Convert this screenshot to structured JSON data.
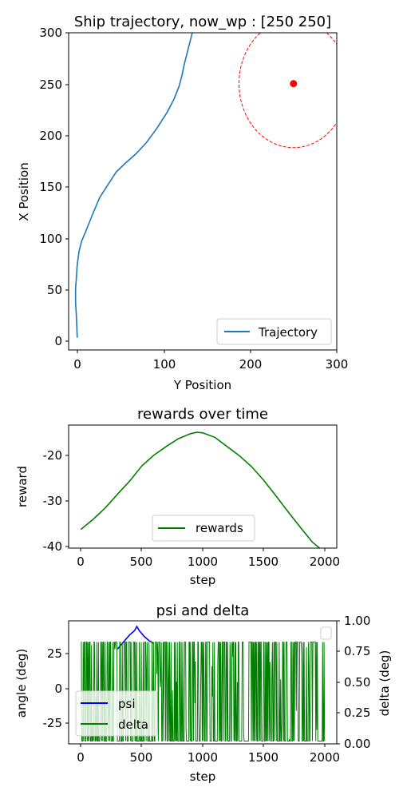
{
  "chart_data": [
    {
      "type": "line",
      "title": "Ship trajectory, now_wp : [250 250]",
      "xlabel": "Y Position",
      "ylabel": "X Position",
      "xlim": [
        -10,
        300
      ],
      "ylim": [
        -12,
        300
      ],
      "xticks": [
        0,
        100,
        200,
        300
      ],
      "yticks": [
        0,
        50,
        100,
        150,
        200,
        250,
        300
      ],
      "legend": {
        "position": "lower-right",
        "entries": [
          "Trajectory"
        ]
      },
      "series": [
        {
          "name": "Trajectory",
          "color": "#1f77b4",
          "x": [
            0,
            -1,
            -2,
            -2,
            -1,
            0,
            2,
            5,
            10,
            18,
            26,
            35,
            45,
            56,
            68,
            80,
            92,
            104,
            112,
            118,
            121,
            124,
            127,
            130,
            133,
            135
          ],
          "y": [
            0,
            20,
            35,
            48,
            60,
            72,
            85,
            95,
            105,
            122,
            138,
            150,
            163,
            172,
            181,
            192,
            206,
            222,
            235,
            248,
            258,
            270,
            280,
            290,
            300,
            308
          ]
        }
      ],
      "waypoint": {
        "y": 250,
        "x": 250,
        "color": "#ff0000"
      },
      "waypoint_circle": {
        "cy": 250,
        "cx": 250,
        "r": 63,
        "color": "#ff0000",
        "style": "dashed"
      }
    },
    {
      "type": "line",
      "title": "rewards over time",
      "xlabel": "step",
      "ylabel": "reward",
      "xlim": [
        -100,
        2100
      ],
      "ylim": [
        -40.3,
        -13.3
      ],
      "xticks": [
        0,
        500,
        1000,
        1500,
        2000
      ],
      "yticks": [
        -40,
        -30,
        -20
      ],
      "legend": {
        "position": "bottom-center",
        "entries": [
          "rewards"
        ]
      },
      "series": [
        {
          "name": "rewards",
          "color": "#008000",
          "x": [
            0,
            100,
            200,
            300,
            400,
            500,
            600,
            700,
            800,
            900,
            950,
            1000,
            1100,
            1200,
            1300,
            1400,
            1500,
            1600,
            1700,
            1800,
            1900,
            2000
          ],
          "y": [
            -36.2,
            -34.0,
            -31.5,
            -28.5,
            -25.6,
            -22.3,
            -19.9,
            -18.0,
            -16.3,
            -15.2,
            -14.9,
            -15.0,
            -16.0,
            -18.0,
            -20.0,
            -22.4,
            -25.4,
            -28.8,
            -32.3,
            -35.7,
            -39.0,
            -41.2
          ]
        }
      ]
    },
    {
      "type": "line",
      "title": "psi and delta",
      "xlabel": "step",
      "ylabel": "angle (deg)",
      "ylabel_right": "delta (deg)",
      "xlim": [
        -100,
        2100
      ],
      "ylim": [
        -37,
        50
      ],
      "ylim_right": [
        0,
        1
      ],
      "xticks": [
        0,
        500,
        1000,
        1500,
        2000
      ],
      "yticks": [
        -25,
        0,
        25
      ],
      "yticks_right": [
        "0.00",
        "0.25",
        "0.50",
        "0.75",
        "1.00"
      ],
      "legend": {
        "position": "lower-left",
        "entries": [
          "psi",
          "delta"
        ]
      },
      "series": [
        {
          "name": "psi",
          "color": "#0000ff",
          "x": [
            300,
            350,
            400,
            440,
            460,
            480,
            520,
            560,
            600
          ],
          "y": [
            30,
            35,
            40,
            43,
            46,
            43,
            39,
            36,
            34
          ]
        },
        {
          "name": "delta",
          "color": "#008000",
          "x_range": [
            0,
            2000
          ],
          "y_range": [
            -35,
            35
          ],
          "pattern": "rapid oscillation between -35 and 35"
        }
      ]
    }
  ]
}
